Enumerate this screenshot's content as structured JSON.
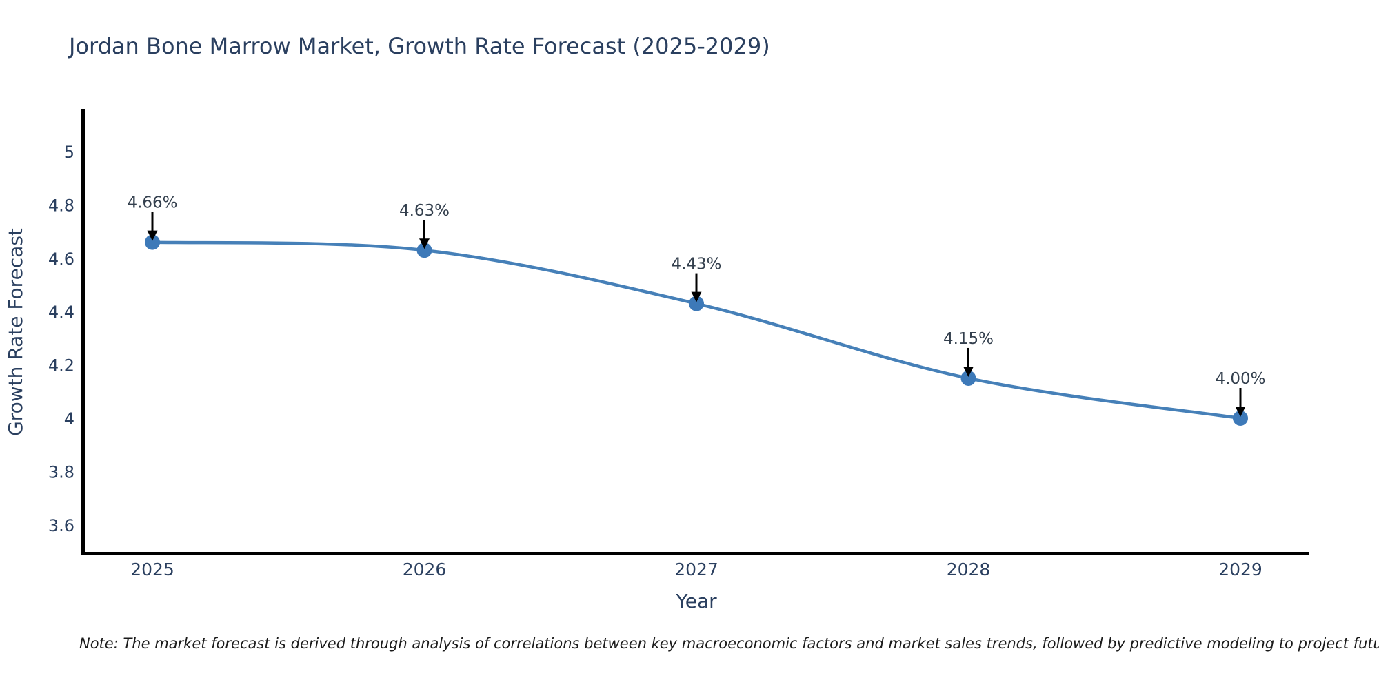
{
  "title": "Jordan Bone Marrow Market, Growth Rate Forecast (2025-2029)",
  "note": "Note: The market forecast is derived through analysis of correlations between key macroeconomic factors and market sales trends, followed by predictive modeling to project future sales",
  "chart_data": {
    "type": "line",
    "title": "Jordan Bone Marrow Market, Growth Rate Forecast (2025-2029)",
    "xlabel": "Year",
    "ylabel": "Growth Rate Forecast",
    "x": [
      2025,
      2026,
      2027,
      2028,
      2029
    ],
    "values": [
      4.66,
      4.63,
      4.43,
      4.15,
      4.0
    ],
    "point_labels": [
      "4.66%",
      "4.63%",
      "4.43%",
      "4.15%",
      "4.00%"
    ],
    "x_tick_labels": [
      "2025",
      "2026",
      "2027",
      "2028",
      "2029"
    ],
    "y_ticks": [
      3.6,
      3.8,
      4,
      4.2,
      4.4,
      4.6,
      4.8,
      5
    ],
    "y_tick_labels": [
      "3.6",
      "3.8",
      "4",
      "4.2",
      "4.4",
      "4.6",
      "4.8",
      "5"
    ],
    "ylim": [
      3.49,
      5.16
    ],
    "grid": false,
    "legend": "none",
    "line_shape": "spline",
    "marker": "circle",
    "annotation_arrows": true,
    "colors": {
      "line": "#4680b8",
      "marker": "#3d79b8",
      "arrow": "#000000",
      "axis": "#000000",
      "text": "#2a3f5f",
      "annotation_text": "#333f4d",
      "note_text": "#1a1a1a",
      "background": "#ffffff"
    }
  }
}
